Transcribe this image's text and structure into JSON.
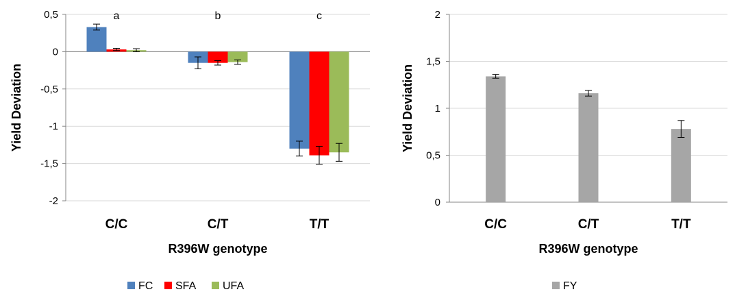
{
  "chart_data": [
    {
      "type": "bar",
      "categories": [
        "C/C",
        "C/T",
        "T/T"
      ],
      "series": [
        {
          "name": "FC",
          "color": "#4f81bd",
          "values": [
            0.33,
            -0.15,
            -1.3
          ],
          "errors": [
            0.04,
            0.08,
            0.1
          ]
        },
        {
          "name": "SFA",
          "color": "#ff0000",
          "values": [
            0.03,
            -0.15,
            -1.39
          ],
          "errors": [
            0.015,
            0.03,
            0.12
          ]
        },
        {
          "name": "UFA",
          "color": "#9bbb59",
          "values": [
            0.02,
            -0.14,
            -1.35
          ],
          "errors": [
            0.02,
            0.03,
            0.12
          ]
        }
      ],
      "annotations": [
        "a",
        "b",
        "c"
      ],
      "xlabel": "R396W genotype",
      "ylabel": "Yield Deviation",
      "ylim": [
        -2,
        0.5
      ],
      "yticks": [
        0.5,
        0,
        -0.5,
        -1,
        -1.5,
        -2
      ],
      "ytick_labels": [
        "0,5",
        "0",
        "-0,5",
        "-1",
        "-1,5",
        "-2"
      ],
      "grid": true,
      "legend": "bottom"
    },
    {
      "type": "bar",
      "categories": [
        "C/C",
        "C/T",
        "T/T"
      ],
      "series": [
        {
          "name": "FY",
          "color": "#a6a6a6",
          "values": [
            1.34,
            1.16,
            0.78
          ],
          "errors": [
            0.02,
            0.03,
            0.09
          ]
        }
      ],
      "xlabel": "R396W genotype",
      "ylabel": "Yield Deviation",
      "ylim": [
        0,
        2
      ],
      "yticks": [
        2,
        1.5,
        1,
        0.5,
        0
      ],
      "ytick_labels": [
        "2",
        "1,5",
        "1",
        "0,5",
        "0"
      ],
      "grid": true,
      "legend": "bottom"
    }
  ]
}
